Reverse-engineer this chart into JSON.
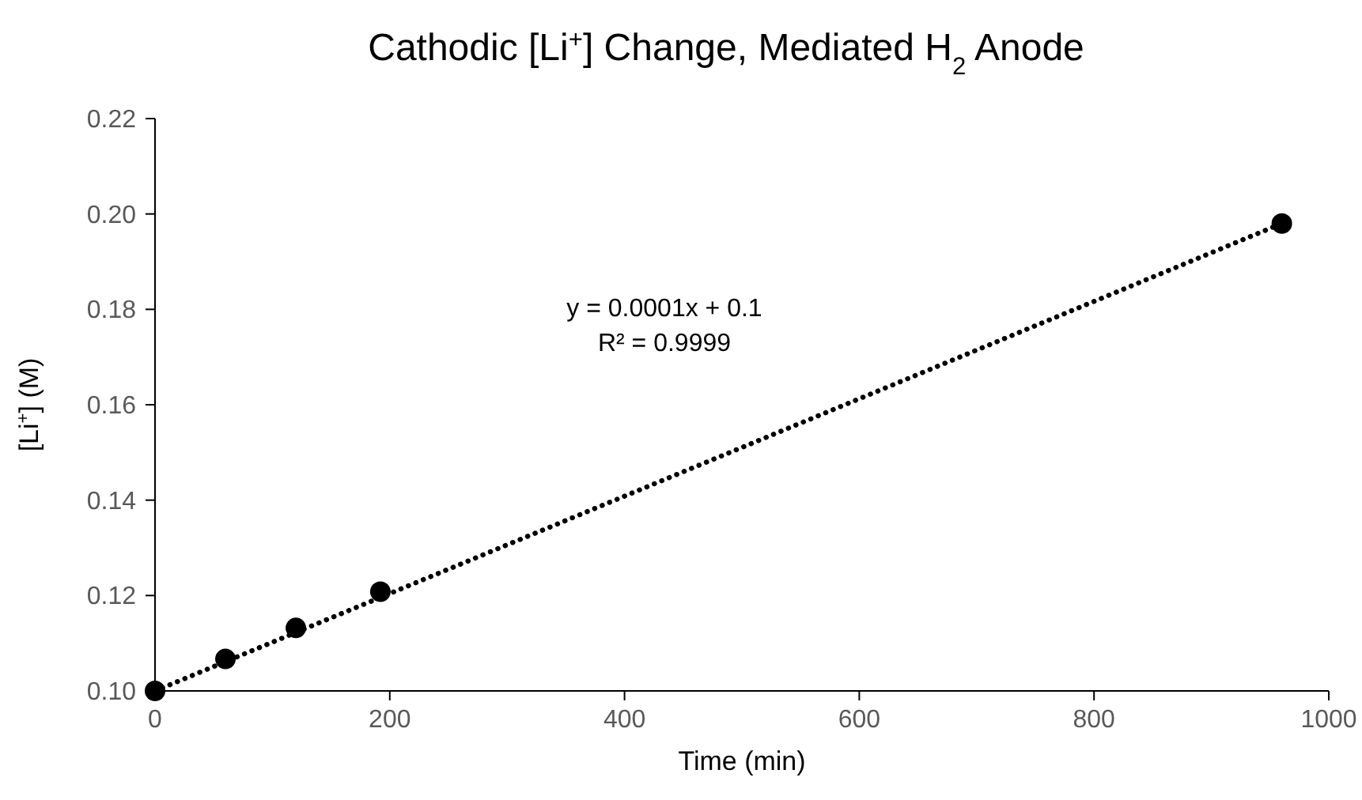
{
  "chart_data": {
    "type": "scatter",
    "title": "Cathodic [Li$^{+}$] Change, Mediated H$_{2}$ Anode",
    "xlabel": "Time (min)",
    "ylabel": "[Li$^{+}$] (M)",
    "xlim": [
      0,
      1000
    ],
    "xticks": [
      0,
      200,
      400,
      600,
      800,
      1000
    ],
    "ylim": [
      0.1,
      0.22
    ],
    "yticks": [
      {
        "value": 0.1,
        "label": "0.10"
      },
      {
        "value": 0.12,
        "label": "0.12"
      },
      {
        "value": 0.14,
        "label": "0.14"
      },
      {
        "value": 0.16,
        "label": "0.16"
      },
      {
        "value": 0.18,
        "label": "0.18"
      },
      {
        "value": 0.2,
        "label": "0.20"
      },
      {
        "value": 0.22,
        "label": "0.22"
      }
    ],
    "grid": false,
    "marker": "circle",
    "series": [
      {
        "color": "#000000",
        "x": [
          0,
          60,
          120,
          192,
          960
        ],
        "values": [
          0.1,
          0.1067,
          0.1132,
          0.1208,
          0.198
        ]
      },
      {
        "type": "line",
        "color": "#000000",
        "line_style": "dotted",
        "marker": "none",
        "x": [
          0,
          960
        ],
        "values": [
          0.1,
          0.198
        ]
      }
    ],
    "annotations": [
      "y = 0.0001x + 0.1",
      "R² = 0.9999"
    ]
  }
}
